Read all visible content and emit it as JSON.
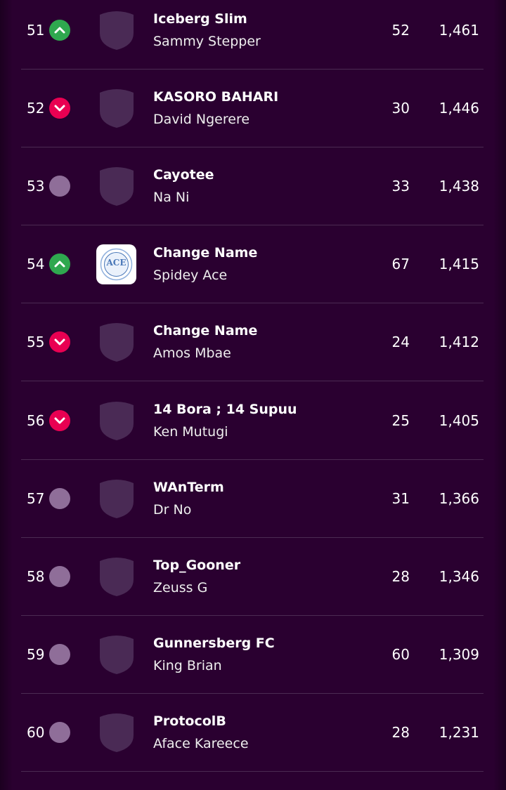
{
  "rows": [
    {
      "rank": 51,
      "movement": "up",
      "team": "Iceberg Slim",
      "manager": "Sammy Stepper",
      "gw": 52,
      "total": "1,461"
    },
    {
      "rank": 52,
      "movement": "down",
      "team": "KASORO BAHARI",
      "manager": "David Ngerere",
      "gw": 30,
      "total": "1,446"
    },
    {
      "rank": 53,
      "movement": "same",
      "team": "Cayotee",
      "manager": "Na Ni",
      "gw": 33,
      "total": "1,438"
    },
    {
      "rank": 54,
      "movement": "up",
      "team": "Change Name",
      "manager": "Spidey Ace",
      "gw": 67,
      "total": "1,415",
      "badge": "ACE"
    },
    {
      "rank": 55,
      "movement": "down",
      "team": "Change Name",
      "manager": "Amos Mbae",
      "gw": 24,
      "total": "1,412"
    },
    {
      "rank": 56,
      "movement": "down",
      "team": "14 Bora ; 14 Supuu",
      "manager": "Ken Mutugi",
      "gw": 25,
      "total": "1,405"
    },
    {
      "rank": 57,
      "movement": "same",
      "team": "WAnTerm",
      "manager": "Dr No",
      "gw": 31,
      "total": "1,366"
    },
    {
      "rank": 58,
      "movement": "same",
      "team": "Top_Gooner",
      "manager": "Zeuss G",
      "gw": 28,
      "total": "1,346"
    },
    {
      "rank": 59,
      "movement": "same",
      "team": "Gunnersberg FC",
      "manager": "King Brian",
      "gw": 60,
      "total": "1,309"
    },
    {
      "rank": 60,
      "movement": "same",
      "team": "ProtocolB",
      "manager": "Aface Kareece",
      "gw": 28,
      "total": "1,231"
    }
  ]
}
